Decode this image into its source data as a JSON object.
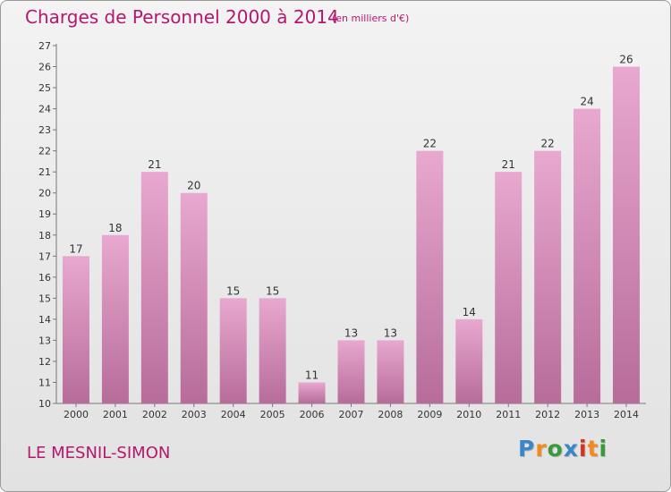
{
  "header": {
    "title": "Charges de Personnel 2000 à 2014",
    "subtitle": "(en milliers d'€)"
  },
  "footer": {
    "commune": "LE MESNIL-SIMON",
    "logo_text": "Proxiti"
  },
  "colors": {
    "title": "#b5176d",
    "bar_top": "#e8a8cf",
    "bar_bottom": "#b76c9a",
    "axis": "#777777"
  },
  "chart_data": {
    "type": "bar",
    "title": "Charges de Personnel 2000 à 2014",
    "subtitle": "(en milliers d'€)",
    "categories": [
      "2000",
      "2001",
      "2002",
      "2003",
      "2004",
      "2005",
      "2006",
      "2007",
      "2008",
      "2009",
      "2010",
      "2011",
      "2012",
      "2013",
      "2014"
    ],
    "values": [
      17,
      18,
      21,
      20,
      15,
      15,
      11,
      13,
      13,
      22,
      14,
      21,
      22,
      24,
      26
    ],
    "ylim": [
      10,
      27
    ],
    "yticks": [
      10,
      11,
      12,
      13,
      14,
      15,
      16,
      17,
      18,
      19,
      20,
      21,
      22,
      23,
      24,
      25,
      26,
      27
    ],
    "xlabel": "",
    "ylabel": "",
    "grid": false,
    "data_labels": true
  }
}
